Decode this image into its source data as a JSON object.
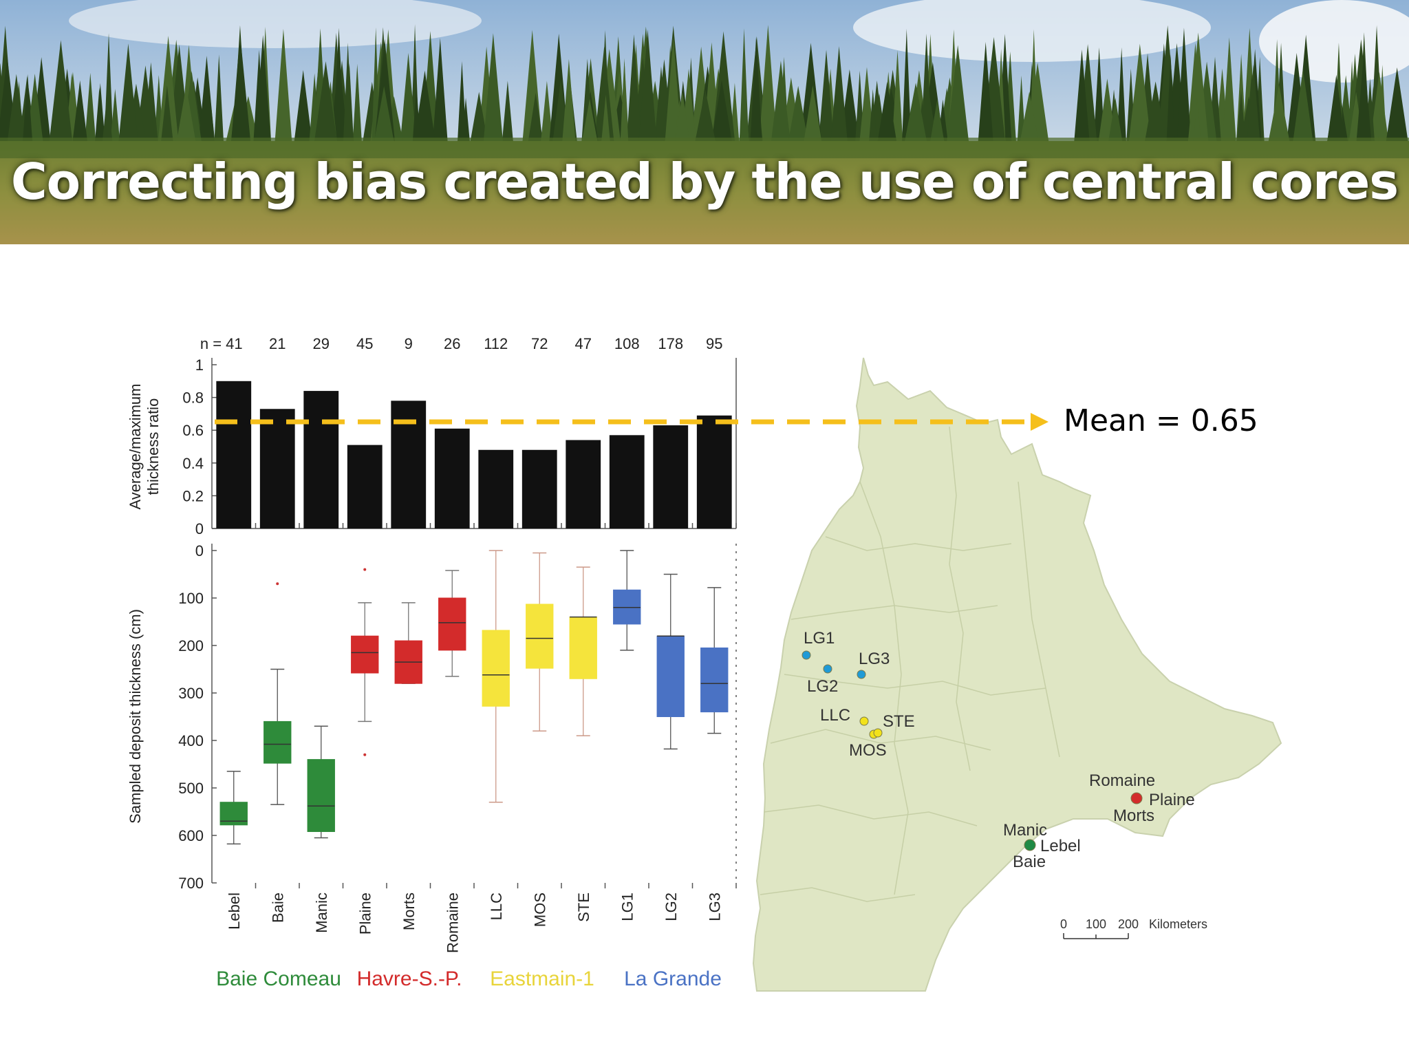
{
  "slide": {
    "title": "Correcting bias created by the use of central cores",
    "mean_label": "Mean = 0.65"
  },
  "chart_data": [
    {
      "type": "bar",
      "ylabel": "Average/maximum thickness ratio",
      "ylim": [
        0,
        1
      ],
      "yticks": [
        "0",
        "0.2",
        "0.4",
        "0.6",
        "0.8",
        "1"
      ],
      "categories": [
        "Lebel",
        "Baie",
        "Manic",
        "Plaine",
        "Morts",
        "Romaine",
        "LLC",
        "MOS",
        "STE",
        "LG1",
        "LG2",
        "LG3"
      ],
      "n_labels": [
        "n = 41",
        "21",
        "29",
        "45",
        "9",
        "26",
        "112",
        "72",
        "47",
        "108",
        "178",
        "95"
      ],
      "values": [
        0.9,
        0.73,
        0.84,
        0.51,
        0.78,
        0.61,
        0.48,
        0.48,
        0.54,
        0.57,
        0.63,
        0.69
      ],
      "mean": 0.65,
      "bar_color": "#111111",
      "mean_line_color": "#f5bf1b"
    },
    {
      "type": "boxplot",
      "ylabel": "Sampled deposit thickness (cm)",
      "ylim": [
        0,
        700
      ],
      "y_inverted": true,
      "yticks": [
        "0",
        "100",
        "200",
        "300",
        "400",
        "500",
        "600",
        "700"
      ],
      "categories": [
        "Lebel",
        "Baie",
        "Manic",
        "Plaine",
        "Morts",
        "Romaine",
        "LLC",
        "MOS",
        "STE",
        "LG1",
        "LG2",
        "LG3"
      ],
      "boxes": [
        {
          "whisker_low": 465,
          "q1": 530,
          "median": 570,
          "q3": 578,
          "whisker_high": 618,
          "outliers": [],
          "group": "baie_comeau"
        },
        {
          "whisker_low": 250,
          "q1": 360,
          "median": 408,
          "q3": 448,
          "whisker_high": 535,
          "outliers": [
            70
          ],
          "group": "baie_comeau"
        },
        {
          "whisker_low": 370,
          "q1": 440,
          "median": 538,
          "q3": 592,
          "whisker_high": 605,
          "outliers": [],
          "group": "baie_comeau"
        },
        {
          "whisker_low": 110,
          "q1": 180,
          "median": 215,
          "q3": 258,
          "whisker_high": 360,
          "outliers": [
            40,
            430
          ],
          "group": "havre"
        },
        {
          "whisker_low": 110,
          "q1": 190,
          "median": 235,
          "q3": 280,
          "whisker_high": 280,
          "outliers": [],
          "group": "havre"
        },
        {
          "whisker_low": 42,
          "q1": 100,
          "median": 152,
          "q3": 210,
          "whisker_high": 265,
          "outliers": [],
          "group": "havre"
        },
        {
          "whisker_low": 0,
          "q1": 168,
          "median": 262,
          "q3": 328,
          "whisker_high": 530,
          "outliers": [],
          "group": "eastmain"
        },
        {
          "whisker_low": 5,
          "q1": 113,
          "median": 185,
          "q3": 248,
          "whisker_high": 380,
          "outliers": [],
          "group": "eastmain"
        },
        {
          "whisker_low": 35,
          "q1": 140,
          "median": 140,
          "q3": 270,
          "whisker_high": 390,
          "outliers": [],
          "group": "eastmain"
        },
        {
          "whisker_low": 0,
          "q1": 83,
          "median": 120,
          "q3": 155,
          "whisker_high": 210,
          "outliers": [],
          "group": "la_grande"
        },
        {
          "whisker_low": 50,
          "q1": 180,
          "median": 180,
          "q3": 350,
          "whisker_high": 418,
          "outliers": [],
          "group": "la_grande"
        },
        {
          "whisker_low": 78,
          "q1": 205,
          "median": 280,
          "q3": 340,
          "whisker_high": 385,
          "outliers": [],
          "group": "la_grande"
        }
      ],
      "groups": [
        {
          "id": "baie_comeau",
          "name": "Baie Comeau",
          "color": "#2e8b3a"
        },
        {
          "id": "havre",
          "name": "Havre-S.-P.",
          "color": "#d32b2b"
        },
        {
          "id": "eastmain",
          "name": "Eastmain-1",
          "color": "#f5e43c"
        },
        {
          "id": "la_grande",
          "name": "La Grande",
          "color": "#4a72c4"
        }
      ]
    }
  ],
  "map": {
    "land_color": "#dfe6c4",
    "sites": [
      {
        "label": "LG1",
        "color": "#1f9ad6"
      },
      {
        "label": "LG2",
        "color": "#1f9ad6"
      },
      {
        "label": "LG3",
        "color": "#1f9ad6"
      },
      {
        "label": "LLC",
        "color": "#f2e21b"
      },
      {
        "label": "STE",
        "color": "#f2e21b"
      },
      {
        "label": "MOS",
        "color": "#f2e21b"
      },
      {
        "label": "Romaine",
        "color": "#d32b2b"
      },
      {
        "label": "Plaine",
        "color": "#d32b2b"
      },
      {
        "label": "Morts",
        "color": "#d32b2b"
      },
      {
        "label": "Manic",
        "color": "#1f8a45"
      },
      {
        "label": "Lebel",
        "color": "#1f8a45"
      },
      {
        "label": "Baie",
        "color": "#1f8a45"
      }
    ],
    "scale_labels": [
      "0",
      "100",
      "200",
      "Kilometers"
    ]
  }
}
